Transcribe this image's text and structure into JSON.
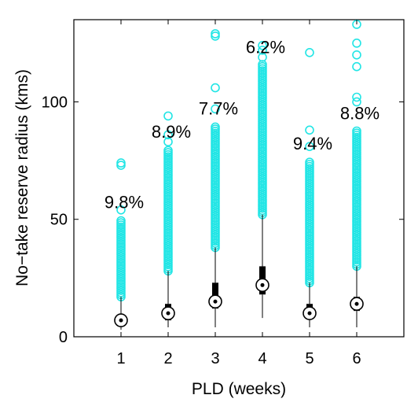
{
  "chart_data": {
    "type": "box",
    "xlabel": "PLD (weeks)",
    "ylabel": "No−take reserve radius (kms)",
    "categories": [
      "1",
      "2",
      "3",
      "4",
      "5",
      "6"
    ],
    "ylim": [
      0,
      135
    ],
    "xlim": [
      0,
      7
    ],
    "yticks": [
      "0",
      "50",
      "100"
    ],
    "ytick_values": [
      0,
      50,
      100
    ],
    "grid": false,
    "outlier_color": "#22e5e5",
    "box_color": "#000000",
    "boxes": [
      {
        "x": "1",
        "median": 7,
        "q1": 5,
        "q3": 9,
        "whisker_low": 3,
        "whisker_high": 17,
        "outlier_range": [
          17,
          50
        ],
        "top_outliers": [
          54,
          73,
          74
        ],
        "pct_label": "9.8%"
      },
      {
        "x": "2",
        "median": 10,
        "q1": 7,
        "q3": 14,
        "whisker_low": 4,
        "whisker_high": 28,
        "outlier_range": [
          28,
          80
        ],
        "top_outliers": [
          83,
          86,
          94
        ],
        "pct_label": "8.9%"
      },
      {
        "x": "3",
        "median": 15,
        "q1": 12,
        "q3": 23,
        "whisker_low": 4,
        "whisker_high": 38,
        "outlier_range": [
          38,
          90
        ],
        "top_outliers": [
          97,
          106,
          128,
          129
        ],
        "pct_label": "7.7%"
      },
      {
        "x": "4",
        "median": 22,
        "q1": 18,
        "q3": 30,
        "whisker_low": 8,
        "whisker_high": 52,
        "outlier_range": [
          52,
          116
        ],
        "top_outliers": [
          119,
          122,
          124
        ],
        "pct_label": "6.2%"
      },
      {
        "x": "5",
        "median": 10,
        "q1": 8,
        "q3": 14,
        "whisker_low": 4,
        "whisker_high": 23,
        "outlier_range": [
          23,
          75
        ],
        "top_outliers": [
          81,
          88,
          121
        ],
        "pct_label": "9.4%"
      },
      {
        "x": "6",
        "median": 14,
        "q1": 11,
        "q3": 17,
        "whisker_low": 4,
        "whisker_high": 30,
        "outlier_range": [
          30,
          88
        ],
        "top_outliers": [
          100,
          102,
          115,
          120,
          125,
          133
        ],
        "pct_label": "8.8%"
      }
    ]
  }
}
